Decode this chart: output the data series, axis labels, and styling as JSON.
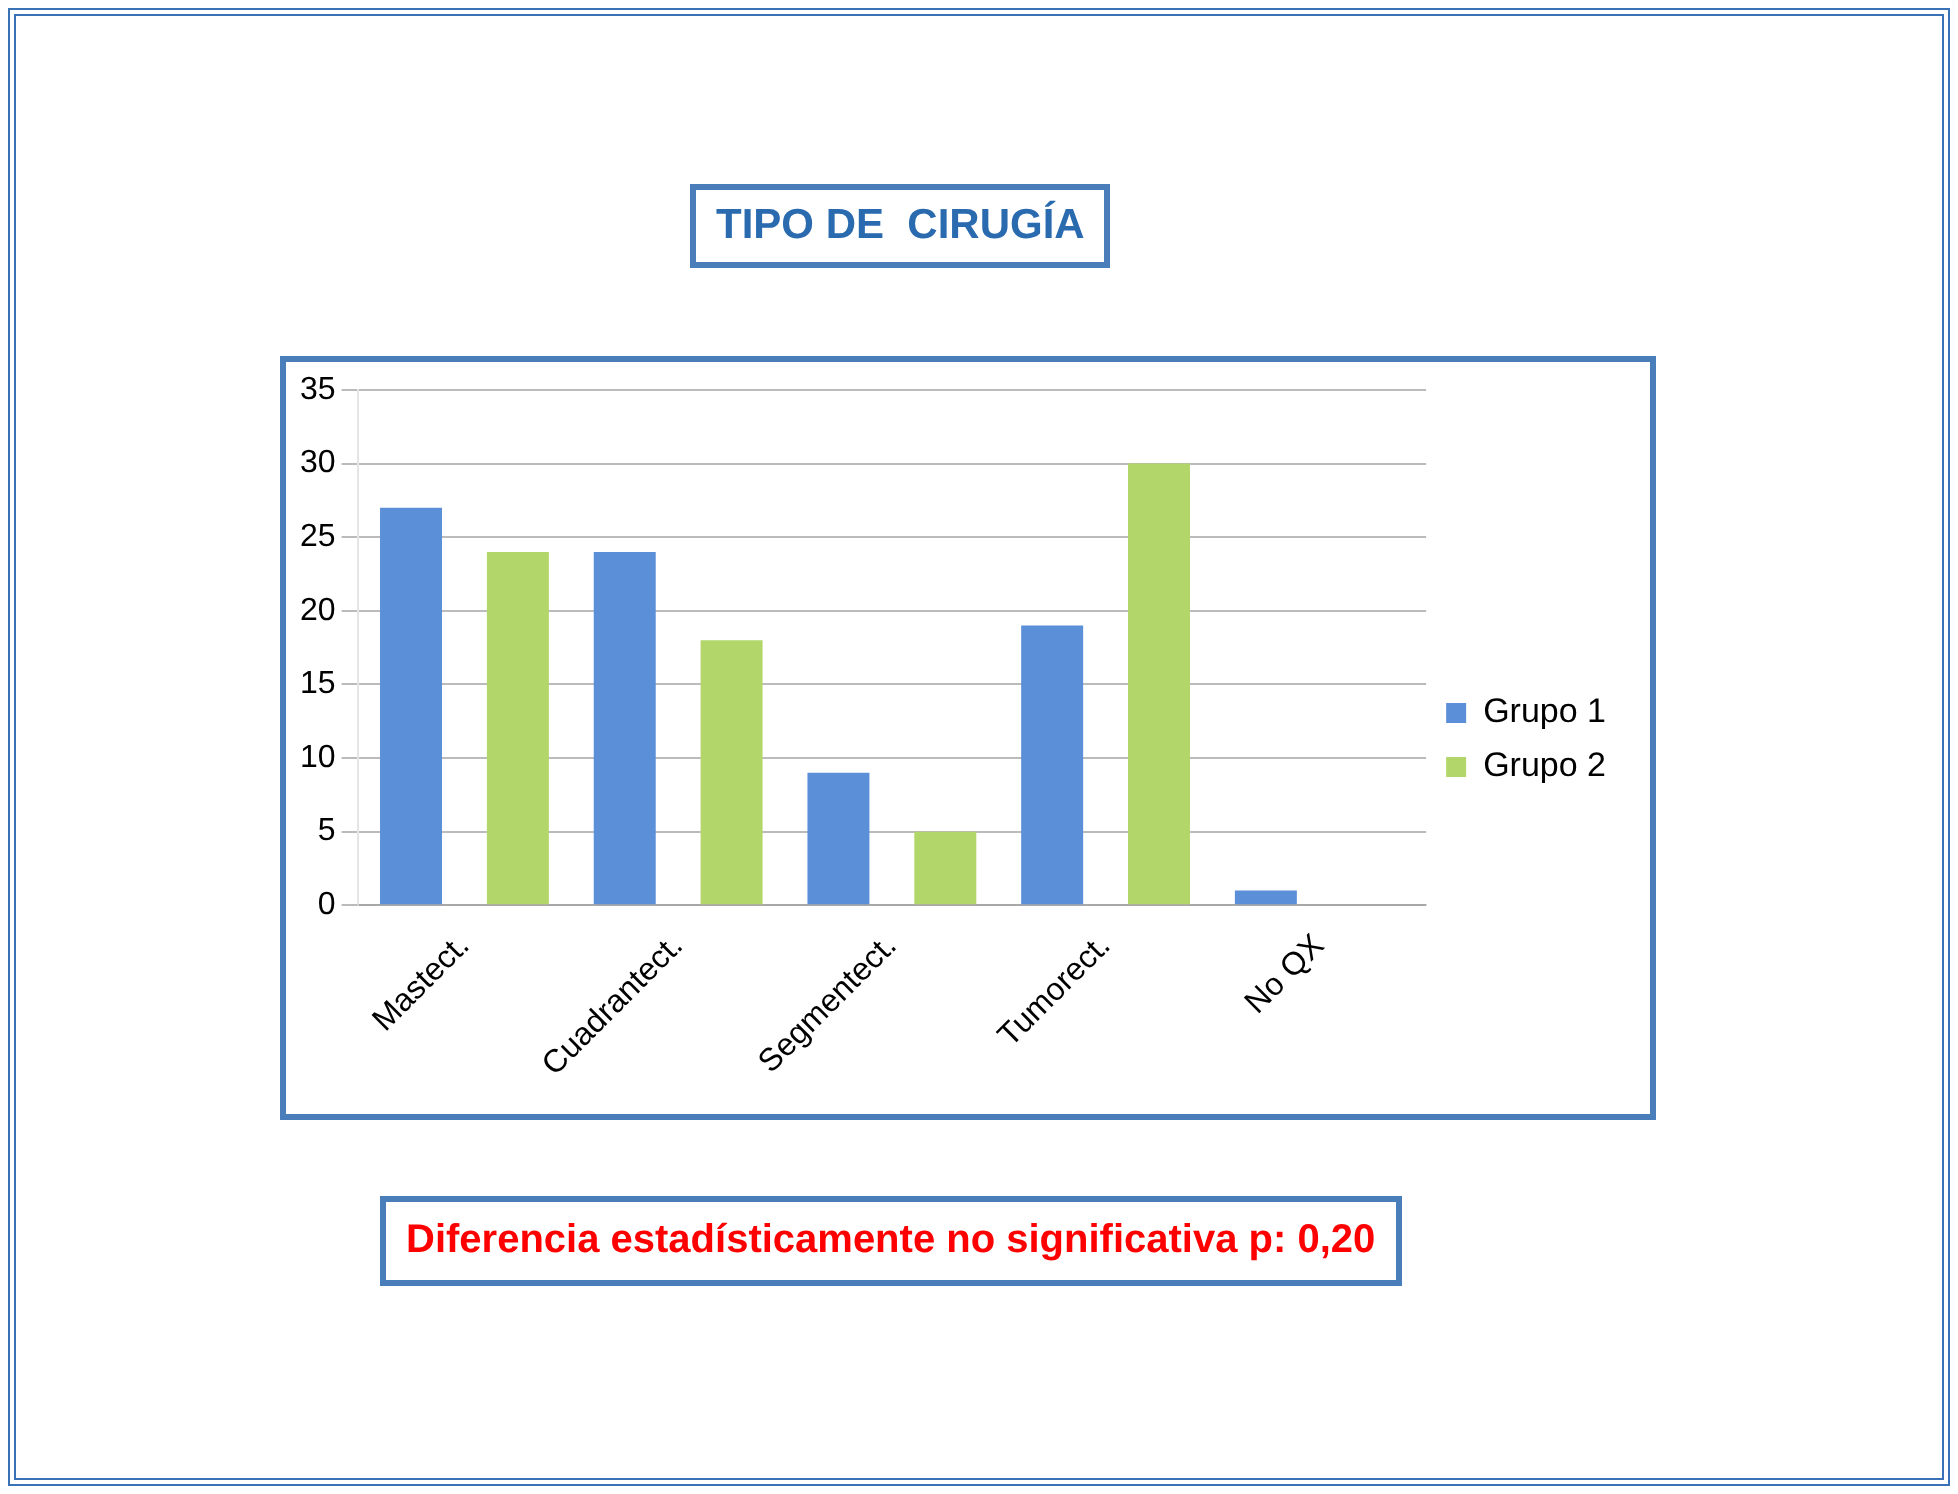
{
  "chart_data": {
    "type": "bar",
    "title": "TIPO DE  CIRUGÍA",
    "categories": [
      "Mastect.",
      "Cuadrantect.",
      "Segmentect.",
      "Tumorect.",
      "No QX"
    ],
    "series": [
      {
        "name": "Grupo 1",
        "color": "#5b8fd8",
        "values": [
          27,
          24,
          9,
          19,
          1
        ]
      },
      {
        "name": "Grupo 2",
        "color": "#b2d66a",
        "values": [
          24,
          18,
          5,
          30,
          0
        ]
      }
    ],
    "ylim": [
      0,
      35
    ],
    "yticks": [
      0,
      5,
      10,
      15,
      20,
      25,
      30,
      35
    ],
    "grid": "y",
    "legend": "right",
    "annotations": [
      "Diferencia estadísticamente no significativa p: 0,20"
    ]
  }
}
